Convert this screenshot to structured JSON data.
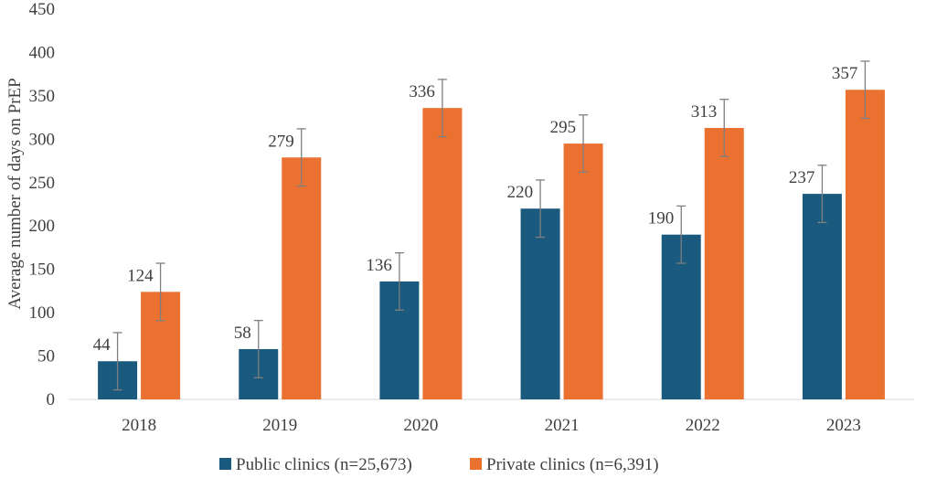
{
  "chart_data": {
    "type": "bar",
    "title": "",
    "xlabel": "",
    "ylabel": "Average number of days on PrEP",
    "ylim": [
      0,
      450
    ],
    "yticks": [
      0,
      50,
      100,
      150,
      200,
      250,
      300,
      350,
      400,
      450
    ],
    "categories": [
      "2018",
      "2019",
      "2020",
      "2021",
      "2022",
      "2023"
    ],
    "series": [
      {
        "name": "Public clinics (n=25,673)",
        "color": "#1a5a7e",
        "values": [
          44,
          58,
          136,
          220,
          190,
          237
        ],
        "error": [
          33,
          33,
          33,
          33,
          33,
          33
        ]
      },
      {
        "name": "Private clinics (n=6,391)",
        "color": "#ea7130",
        "values": [
          124,
          279,
          336,
          295,
          313,
          357
        ],
        "error": [
          33,
          33,
          33,
          33,
          33,
          33
        ]
      }
    ],
    "grid": false,
    "legend": "bottom"
  }
}
